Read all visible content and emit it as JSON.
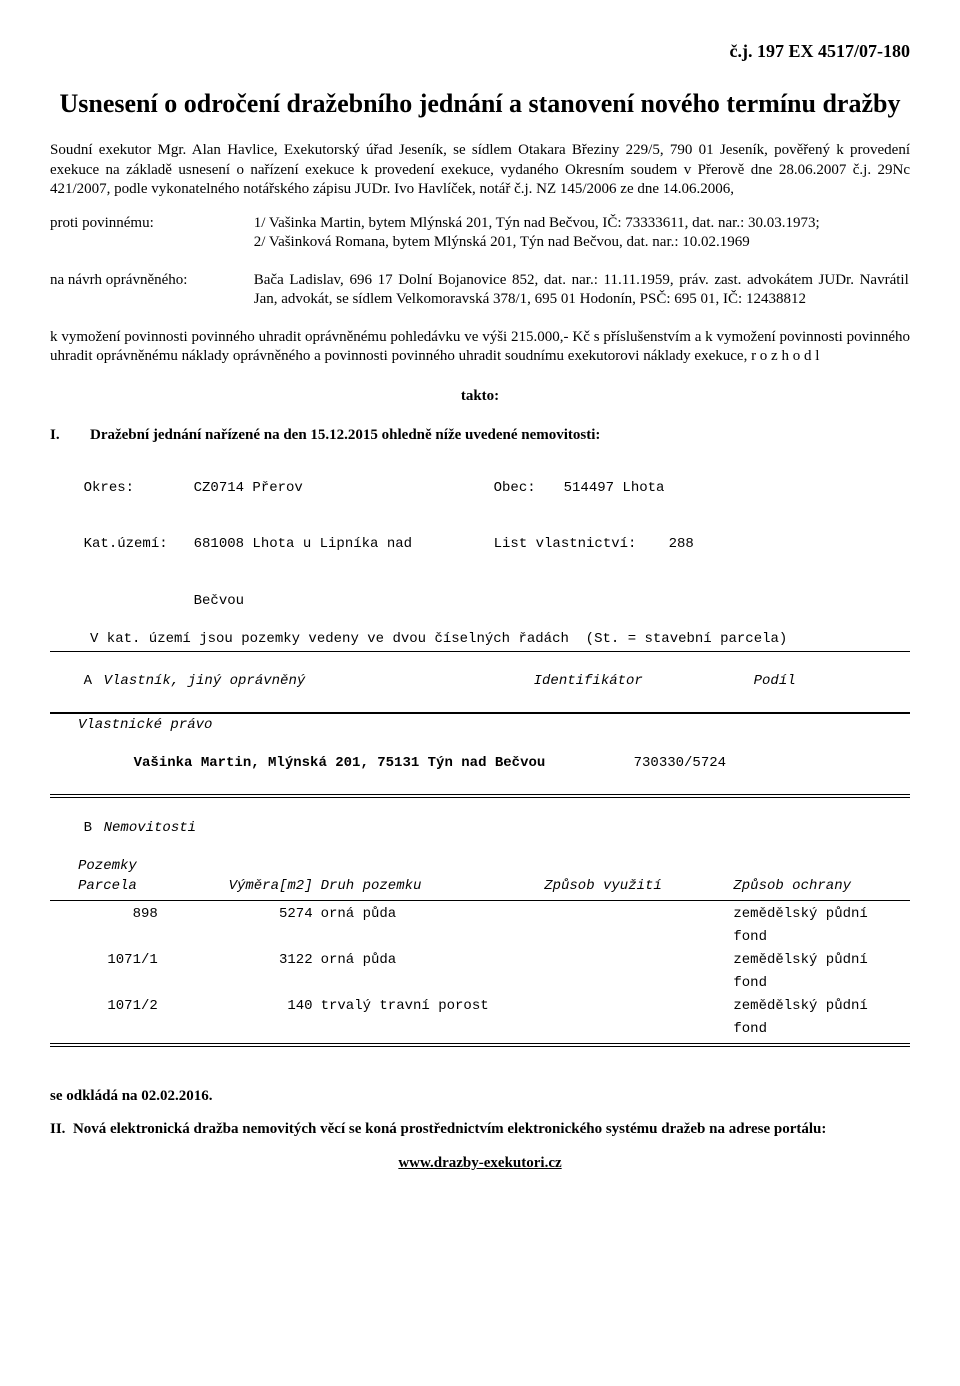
{
  "case_number": "č.j. 197 EX 4517/07-180",
  "title": "Usnesení o odročení dražebního jednání a stanovení nového termínu dražby",
  "intro": "Soudní exekutor Mgr. Alan Havlice, Exekutorský úřad Jeseník, se sídlem Otakara Březiny 229/5, 790 01  Jeseník, pověřený k provedení exekuce na základě usnesení o nařízení exekuce k provedení exekuce, vydaného Okresním soudem v Přerově dne 28.06.2007 č.j. 29Nc 421/2007, podle vykonatelného notářského zápisu JUDr. Ivo Havlíček, notář č.j. NZ 145/2006 ze dne 14.06.2006,",
  "label_defendant": "proti povinnému:",
  "defendant_text": "1/ Vašinka Martin, bytem Mlýnská 201, Týn nad Bečvou, IČ: 73333611,  dat. nar.: 30.03.1973;\n2/ Vašinková Romana, bytem Mlýnská 201, Týn nad Bečvou,  dat. nar.: 10.02.1969",
  "label_plaintiff": "na návrh oprávněného:",
  "plaintiff_text": "Bača Ladislav, 696 17  Dolní Bojanovice 852,  dat. nar.: 11.11.1959, práv. zast. advokátem JUDr. Navrátil Jan, advokát, se sídlem Velkomoravská 378/1, 695 01 Hodonín, PSČ: 695 01, IČ: 12438812",
  "claim_text": "k vymožení povinnosti povinného uhradit oprávněnému pohledávku ve výši 215.000,- Kč s příslušenstvím a k vymožení povinnosti povinného uhradit oprávněnému náklady oprávněného a povinnosti povinného uhradit soudnímu exekutorovi náklady exekuce, r o z h o d l",
  "takto": "takto:",
  "item1_num": "I.",
  "item1_text": "Dražební jednání nařízené na den 15.12.2015 ohledně níže uvedené nemovitosti:",
  "cad": {
    "okres_label": "Okres:",
    "okres_val": "CZ0714 Přerov",
    "obec_label": "Obec:",
    "obec_val": "514497 Lhota",
    "ku_label": "Kat.území:",
    "ku_val": "681008 Lhota u Lipníka nad",
    "ku_val2": "Bečvou",
    "lv_label": "List vlastnictví:",
    "lv_val": "288",
    "sentence": "V kat. území jsou pozemky vedeny ve dvou číselných řadách  (St. = stavební parcela)",
    "secA": "A",
    "secA_label": "Vlastník, jiný oprávněný",
    "hdr_ident": "Identifikátor",
    "hdr_podil": "Podíl",
    "vlast_pravo": "Vlastnické právo",
    "owner": "Vašinka Martin, Mlýnská 201, 75131 Týn nad Bečvou",
    "owner_ident": "730330/5724",
    "secB": "B",
    "secB_label": "Nemovitosti",
    "pozemky": "Pozemky",
    "parcela": "Parcela",
    "vymera": "Výměra[m2]",
    "druh": "Druh pozemku",
    "vyuziti": "Způsob využití",
    "ochrana": "Způsob ochrany",
    "rows": [
      {
        "parcela": "898",
        "vymera": "5274",
        "druh": "orná půda",
        "ochrana1": "zemědělský půdní",
        "ochrana2": "fond"
      },
      {
        "parcela": "1071/1",
        "vymera": "3122",
        "druh": "orná půda",
        "ochrana1": "zemědělský půdní",
        "ochrana2": "fond"
      },
      {
        "parcela": "1071/2",
        "vymera": "140",
        "druh": "trvalý travní porost",
        "ochrana1": "zemědělský půdní",
        "ochrana2": "fond"
      }
    ]
  },
  "postpone": "se odkládá na 02.02.2016.",
  "item2_pref": "II.",
  "item2_text": "Nová elektronická dražba nemovitých věcí se koná prostřednictvím elektronického systému dražeb na adrese portálu:",
  "url": "www.drazby-exekutori.cz"
}
